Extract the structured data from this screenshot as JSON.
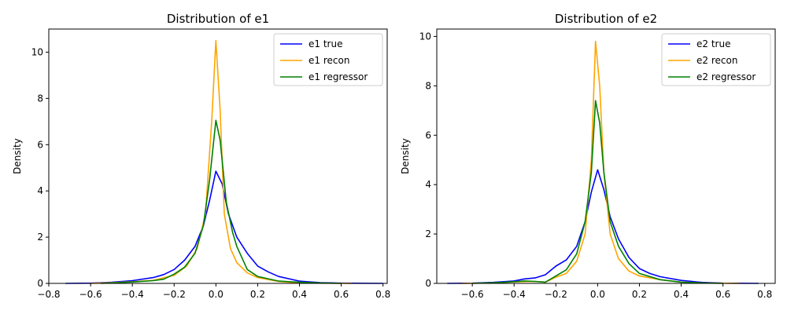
{
  "chart_data": [
    {
      "type": "line",
      "title": "Distribution of e1",
      "xlabel": "",
      "ylabel": "Density",
      "xlim": [
        -0.8,
        0.82
      ],
      "ylim": [
        0,
        11
      ],
      "xticks": [
        -0.8,
        -0.6,
        -0.4,
        -0.2,
        0.0,
        0.2,
        0.4,
        0.6,
        0.8
      ],
      "xtick_labels": [
        "−0.8",
        "−0.6",
        "−0.4",
        "−0.2",
        "0.0",
        "0.2",
        "0.4",
        "0.6",
        "0.8"
      ],
      "yticks": [
        0,
        2,
        4,
        6,
        8,
        10
      ],
      "ytick_labels": [
        "0",
        "2",
        "4",
        "6",
        "8",
        "10"
      ],
      "grid": false,
      "legend": "top-right",
      "series": [
        {
          "name": "e1 true",
          "color": "#0000ff",
          "points": [
            [
              -0.72,
              0
            ],
            [
              -0.6,
              0.01
            ],
            [
              -0.5,
              0.05
            ],
            [
              -0.4,
              0.12
            ],
            [
              -0.3,
              0.25
            ],
            [
              -0.25,
              0.38
            ],
            [
              -0.2,
              0.6
            ],
            [
              -0.15,
              1.0
            ],
            [
              -0.1,
              1.6
            ],
            [
              -0.06,
              2.5
            ],
            [
              -0.03,
              3.6
            ],
            [
              0.0,
              4.85
            ],
            [
              0.03,
              4.3
            ],
            [
              0.06,
              3.0
            ],
            [
              0.1,
              2.0
            ],
            [
              0.15,
              1.3
            ],
            [
              0.2,
              0.75
            ],
            [
              0.25,
              0.5
            ],
            [
              0.3,
              0.3
            ],
            [
              0.4,
              0.1
            ],
            [
              0.5,
              0.03
            ],
            [
              0.6,
              0.01
            ],
            [
              0.8,
              0
            ]
          ]
        },
        {
          "name": "e1 recon",
          "color": "#ffa500",
          "points": [
            [
              -0.6,
              0
            ],
            [
              -0.5,
              0.03
            ],
            [
              -0.4,
              0.07
            ],
            [
              -0.3,
              0.13
            ],
            [
              -0.2,
              0.35
            ],
            [
              -0.14,
              0.75
            ],
            [
              -0.09,
              1.5
            ],
            [
              -0.05,
              3.0
            ],
            [
              -0.02,
              7.0
            ],
            [
              0.0,
              10.5
            ],
            [
              0.02,
              7.5
            ],
            [
              0.04,
              3.0
            ],
            [
              0.07,
              1.5
            ],
            [
              0.1,
              0.9
            ],
            [
              0.15,
              0.45
            ],
            [
              0.2,
              0.25
            ],
            [
              0.3,
              0.08
            ],
            [
              0.4,
              0.02
            ],
            [
              0.5,
              0.01
            ],
            [
              0.65,
              0
            ]
          ]
        },
        {
          "name": "e1 regressor",
          "color": "#008000",
          "points": [
            [
              -0.55,
              0
            ],
            [
              -0.4,
              0.06
            ],
            [
              -0.3,
              0.12
            ],
            [
              -0.25,
              0.18
            ],
            [
              -0.2,
              0.4
            ],
            [
              -0.15,
              0.7
            ],
            [
              -0.1,
              1.3
            ],
            [
              -0.06,
              2.5
            ],
            [
              -0.03,
              4.5
            ],
            [
              0.0,
              7.05
            ],
            [
              0.02,
              6.2
            ],
            [
              0.05,
              3.5
            ],
            [
              0.08,
              2.2
            ],
            [
              0.1,
              1.6
            ],
            [
              0.15,
              0.6
            ],
            [
              0.2,
              0.3
            ],
            [
              0.25,
              0.2
            ],
            [
              0.3,
              0.1
            ],
            [
              0.4,
              0.05
            ],
            [
              0.5,
              0.02
            ],
            [
              0.6,
              0
            ]
          ]
        }
      ]
    },
    {
      "type": "line",
      "title": "Distribution of e2",
      "xlabel": "",
      "ylabel": "Density",
      "xlim": [
        -0.77,
        0.85
      ],
      "ylim": [
        0,
        10.3
      ],
      "xticks": [
        -0.6,
        -0.4,
        -0.2,
        0.0,
        0.2,
        0.4,
        0.6,
        0.8
      ],
      "xtick_labels": [
        "−0.6",
        "−0.4",
        "−0.2",
        "0.0",
        "0.2",
        "0.4",
        "0.6",
        "0.8"
      ],
      "yticks": [
        0,
        2,
        4,
        6,
        8,
        10
      ],
      "ytick_labels": [
        "0",
        "2",
        "4",
        "6",
        "8",
        "10"
      ],
      "grid": false,
      "legend": "top-right",
      "series": [
        {
          "name": "e2 true",
          "color": "#0000ff",
          "points": [
            [
              -0.72,
              0
            ],
            [
              -0.6,
              0.01
            ],
            [
              -0.5,
              0.04
            ],
            [
              -0.4,
              0.1
            ],
            [
              -0.35,
              0.18
            ],
            [
              -0.3,
              0.22
            ],
            [
              -0.25,
              0.35
            ],
            [
              -0.2,
              0.7
            ],
            [
              -0.15,
              0.95
            ],
            [
              -0.1,
              1.5
            ],
            [
              -0.06,
              2.5
            ],
            [
              -0.03,
              3.7
            ],
            [
              0.0,
              4.6
            ],
            [
              0.03,
              3.8
            ],
            [
              0.06,
              2.7
            ],
            [
              0.1,
              1.8
            ],
            [
              0.15,
              1.05
            ],
            [
              0.2,
              0.6
            ],
            [
              0.25,
              0.4
            ],
            [
              0.3,
              0.27
            ],
            [
              0.4,
              0.12
            ],
            [
              0.5,
              0.04
            ],
            [
              0.6,
              0.01
            ],
            [
              0.77,
              0
            ]
          ]
        },
        {
          "name": "e2 recon",
          "color": "#ffa500",
          "points": [
            [
              -0.65,
              0
            ],
            [
              -0.5,
              0.02
            ],
            [
              -0.4,
              0.06
            ],
            [
              -0.3,
              0.08
            ],
            [
              -0.25,
              0.05
            ],
            [
              -0.2,
              0.25
            ],
            [
              -0.15,
              0.4
            ],
            [
              -0.1,
              0.9
            ],
            [
              -0.06,
              2.0
            ],
            [
              -0.03,
              5.0
            ],
            [
              -0.01,
              9.8
            ],
            [
              0.01,
              8.0
            ],
            [
              0.03,
              4.5
            ],
            [
              0.06,
              2.0
            ],
            [
              0.1,
              1.0
            ],
            [
              0.15,
              0.5
            ],
            [
              0.2,
              0.3
            ],
            [
              0.3,
              0.15
            ],
            [
              0.4,
              0.05
            ],
            [
              0.5,
              0.02
            ],
            [
              0.68,
              0
            ]
          ]
        },
        {
          "name": "e2 regressor",
          "color": "#008000",
          "points": [
            [
              -0.6,
              0
            ],
            [
              -0.45,
              0.04
            ],
            [
              -0.35,
              0.1
            ],
            [
              -0.3,
              0.08
            ],
            [
              -0.25,
              0.05
            ],
            [
              -0.2,
              0.3
            ],
            [
              -0.15,
              0.55
            ],
            [
              -0.1,
              1.2
            ],
            [
              -0.06,
              2.5
            ],
            [
              -0.03,
              4.5
            ],
            [
              -0.01,
              7.4
            ],
            [
              0.01,
              6.5
            ],
            [
              0.03,
              4.5
            ],
            [
              0.06,
              2.5
            ],
            [
              0.1,
              1.5
            ],
            [
              0.15,
              0.8
            ],
            [
              0.2,
              0.4
            ],
            [
              0.3,
              0.15
            ],
            [
              0.4,
              0.05
            ],
            [
              0.5,
              0.02
            ],
            [
              0.6,
              0
            ]
          ]
        }
      ]
    }
  ]
}
